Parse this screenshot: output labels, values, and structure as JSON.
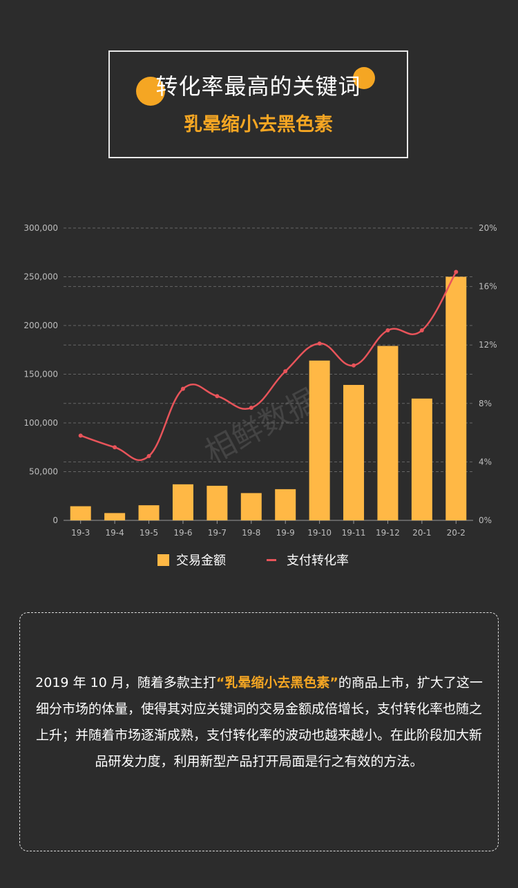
{
  "header": {
    "title": "转化率最高的关键词",
    "keyword": "乳晕缩小去黑色素"
  },
  "watermark": "相鲜数据",
  "colors": {
    "background": "#2c2c2c",
    "bar": "#ffb845",
    "line": "#e8545a",
    "accent": "#f5a623",
    "axis_text": "#bdbdbd",
    "grid": "#666666"
  },
  "chart_data": {
    "type": "bar",
    "categories": [
      "19-3",
      "19-4",
      "19-5",
      "19-6",
      "19-7",
      "19-8",
      "19-9",
      "19-10",
      "19-11",
      "19-12",
      "20-1",
      "20-2"
    ],
    "series": [
      {
        "name": "交易金额",
        "type": "bar",
        "axis": "left",
        "values": [
          14500,
          7500,
          15500,
          37000,
          35500,
          28000,
          32000,
          164000,
          139000,
          179000,
          125000,
          250000
        ]
      },
      {
        "name": "支付转化率",
        "type": "line",
        "axis": "right",
        "unit": "%",
        "values": [
          5.8,
          5.0,
          4.4,
          9.0,
          8.5,
          7.7,
          10.2,
          12.1,
          10.6,
          13.0,
          13.0,
          17.0
        ]
      }
    ],
    "y_left": {
      "min": 0,
      "max": 300000,
      "ticks": [
        "0",
        "50,000",
        "100,000",
        "150,000",
        "200,000",
        "250,000",
        "300,000"
      ]
    },
    "y_right": {
      "min": 0,
      "max": 20,
      "ticks": [
        "0%",
        "4%",
        "8%",
        "12%",
        "16%",
        "20%"
      ]
    },
    "grid": true,
    "legend_position": "bottom"
  },
  "description": {
    "before": "2019 年 10 月，随着多款主打",
    "highlight": "“乳晕缩小去黑色素”",
    "after": "的商品上市，扩大了这一细分市场的体量，使得其对应关键词的交易金额成倍增长，支付转化率也随之上升；并随着市场逐渐成熟，支付转化率的波动也越来越小。在此阶段加大新品研发力度，利用新型产品打开局面是行之有效的方法。"
  }
}
